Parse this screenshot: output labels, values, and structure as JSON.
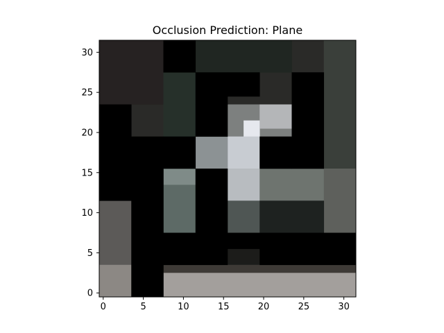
{
  "figure": {
    "background": "#ffffff"
  },
  "chart_data": {
    "type": "heatmap",
    "title": "Occlusion Prediction: Plane",
    "xlabel": "",
    "ylabel": "",
    "xlim": [
      -0.5,
      31.5
    ],
    "ylim": [
      31.5,
      -0.5
    ],
    "xticks": [
      0,
      5,
      10,
      15,
      20,
      25,
      30
    ],
    "yticks": [
      0,
      5,
      10,
      15,
      20,
      25,
      30
    ],
    "grid": false,
    "image_size": [
      32,
      32
    ],
    "occluded_value": "#000000",
    "occlusion_rects": [
      {
        "x0": 8,
        "x1": 12,
        "y0": 0,
        "y1": 4
      },
      {
        "x0": 12,
        "x1": 16,
        "y0": 4,
        "y1": 8
      },
      {
        "x0": 16,
        "x1": 20,
        "y0": 4,
        "y1": 7
      },
      {
        "x0": 0,
        "x1": 4,
        "y0": 8,
        "y1": 20
      },
      {
        "x0": 24,
        "x1": 28,
        "y0": 4,
        "y1": 16
      },
      {
        "x0": 4,
        "x1": 8,
        "y0": 12,
        "y1": 32
      },
      {
        "x0": 8,
        "x1": 12,
        "y0": 12,
        "y1": 16
      },
      {
        "x0": 12,
        "x1": 16,
        "y0": 8,
        "y1": 12
      },
      {
        "x0": 20,
        "x1": 24,
        "y0": 12,
        "y1": 16
      },
      {
        "x0": 12,
        "x1": 16,
        "y0": 16,
        "y1": 28
      },
      {
        "x0": 8,
        "x1": 12,
        "y0": 24,
        "y1": 28
      },
      {
        "x0": 16,
        "x1": 20,
        "y0": 24,
        "y1": 26
      },
      {
        "x0": 20,
        "x1": 32,
        "y0": 24,
        "y1": 28
      }
    ],
    "regions": [
      {
        "x0": 0,
        "x1": 32,
        "y0": 0,
        "y1": 32,
        "color": "#2a2a28"
      },
      {
        "x0": 0,
        "x1": 8,
        "y0": 0,
        "y1": 8,
        "color": "#262222"
      },
      {
        "x0": 12,
        "x1": 24,
        "y0": 0,
        "y1": 4,
        "color": "#202622"
      },
      {
        "x0": 28,
        "x1": 32,
        "y0": 0,
        "y1": 16,
        "color": "#3a3f3a"
      },
      {
        "x0": 8,
        "x1": 12,
        "y0": 4,
        "y1": 12,
        "color": "#26302a"
      },
      {
        "x0": 16,
        "x1": 24,
        "y0": 8,
        "y1": 12,
        "color": "#7d807f"
      },
      {
        "x0": 18,
        "x1": 20,
        "y0": 10,
        "y1": 14,
        "color": "#e6e8ee"
      },
      {
        "x0": 20,
        "x1": 24,
        "y0": 8,
        "y1": 11,
        "color": "#b4b6b8"
      },
      {
        "x0": 16,
        "x1": 20,
        "y0": 12,
        "y1": 16,
        "color": "#c8ccd2"
      },
      {
        "x0": 12,
        "x1": 16,
        "y0": 12,
        "y1": 16,
        "color": "#8c9294"
      },
      {
        "x0": 8,
        "x1": 12,
        "y0": 16,
        "y1": 24,
        "color": "#5d6a66"
      },
      {
        "x0": 8,
        "x1": 12,
        "y0": 16,
        "y1": 18,
        "color": "#7f8b88"
      },
      {
        "x0": 16,
        "x1": 20,
        "y0": 16,
        "y1": 20,
        "color": "#b8bcc0"
      },
      {
        "x0": 20,
        "x1": 28,
        "y0": 16,
        "y1": 20,
        "color": "#6e746f"
      },
      {
        "x0": 28,
        "x1": 32,
        "y0": 16,
        "y1": 24,
        "color": "#5e605c"
      },
      {
        "x0": 16,
        "x1": 20,
        "y0": 20,
        "y1": 24,
        "color": "#4f5654"
      },
      {
        "x0": 20,
        "x1": 28,
        "y0": 20,
        "y1": 24,
        "color": "#1e2220"
      },
      {
        "x0": 0,
        "x1": 4,
        "y0": 20,
        "y1": 32,
        "color": "#5c5a58"
      },
      {
        "x0": 0,
        "x1": 4,
        "y0": 28,
        "y1": 32,
        "color": "#8c8884"
      },
      {
        "x0": 16,
        "x1": 20,
        "y0": 26,
        "y1": 28,
        "color": "#1c1c1a"
      },
      {
        "x0": 8,
        "x1": 32,
        "y0": 28,
        "y1": 29,
        "color": "#3e3a36"
      },
      {
        "x0": 8,
        "x1": 32,
        "y0": 29,
        "y1": 32,
        "color": "#a39f9c"
      }
    ]
  }
}
